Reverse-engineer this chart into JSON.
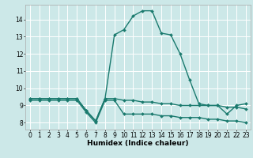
{
  "title": "",
  "xlabel": "Humidex (Indice chaleur)",
  "background_color": "#cce8e8",
  "grid_color": "#ffffff",
  "line_color": "#1a7a6e",
  "xlim": [
    -0.5,
    23.5
  ],
  "ylim": [
    7.6,
    14.85
  ],
  "yticks": [
    8,
    9,
    10,
    11,
    12,
    13,
    14
  ],
  "xticks": [
    0,
    1,
    2,
    3,
    4,
    5,
    6,
    7,
    8,
    9,
    10,
    11,
    12,
    13,
    14,
    15,
    16,
    17,
    18,
    19,
    20,
    21,
    22,
    23
  ],
  "series1_x": [
    0,
    1,
    2,
    3,
    4,
    5,
    6,
    7,
    8,
    9,
    10,
    11,
    12,
    13,
    14,
    15,
    16,
    17,
    18,
    19,
    20,
    21,
    22,
    23
  ],
  "series1_y": [
    9.4,
    9.4,
    9.4,
    9.4,
    9.4,
    9.4,
    8.7,
    8.1,
    9.4,
    13.1,
    13.4,
    14.2,
    14.5,
    14.5,
    13.2,
    13.1,
    12.0,
    10.5,
    9.1,
    9.0,
    9.0,
    8.5,
    9.0,
    9.1
  ],
  "series2_x": [
    0,
    1,
    2,
    3,
    4,
    5,
    6,
    7,
    8,
    9,
    10,
    11,
    12,
    13,
    14,
    15,
    16,
    17,
    18,
    19,
    20,
    21,
    22,
    23
  ],
  "series2_y": [
    9.3,
    9.3,
    9.3,
    9.3,
    9.3,
    9.3,
    8.6,
    8.0,
    9.3,
    9.3,
    8.5,
    8.5,
    8.5,
    8.5,
    8.4,
    8.4,
    8.3,
    8.3,
    8.3,
    8.2,
    8.2,
    8.1,
    8.1,
    8.0
  ],
  "series3_x": [
    0,
    1,
    2,
    3,
    4,
    5,
    6,
    7,
    8,
    9,
    10,
    11,
    12,
    13,
    14,
    15,
    16,
    17,
    18,
    19,
    20,
    21,
    22,
    23
  ],
  "series3_y": [
    9.4,
    9.4,
    9.4,
    9.4,
    9.4,
    9.4,
    8.7,
    8.1,
    9.4,
    9.4,
    9.3,
    9.3,
    9.2,
    9.2,
    9.1,
    9.1,
    9.0,
    9.0,
    9.0,
    9.0,
    9.0,
    8.9,
    8.9,
    8.8
  ],
  "marker": "D",
  "markersize": 2.0,
  "linewidth": 1.0,
  "fontsize_label": 6.5,
  "fontsize_tick": 5.5
}
